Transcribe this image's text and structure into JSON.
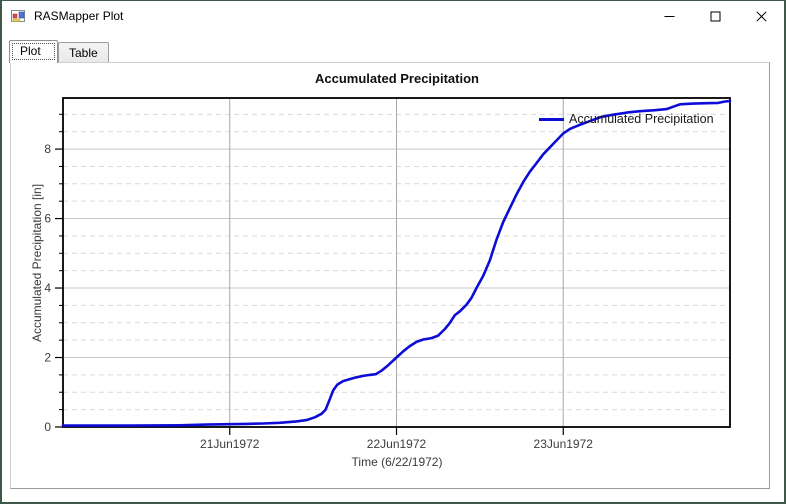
{
  "window": {
    "title": "RASMapper Plot",
    "controls": {
      "minimize": "minimize",
      "maximize": "maximize",
      "close": "close"
    },
    "border_color": "#3d5748"
  },
  "tabs": [
    {
      "label": "Plot",
      "selected": true
    },
    {
      "label": "Table",
      "selected": false
    }
  ],
  "chart_data": {
    "type": "line",
    "title": "Accumulated Precipitation",
    "xlabel": "Time (6/22/1972)",
    "ylabel": "Accumulated Precipitation [in]",
    "x_unit": "days since 20Jun1972 00:00",
    "xlim": [
      0,
      4
    ],
    "ylim": [
      0,
      9.47
    ],
    "xticks": [
      {
        "value": 1,
        "label": "21Jun1972"
      },
      {
        "value": 2,
        "label": "22Jun1972"
      },
      {
        "value": 3,
        "label": "23Jun1972"
      }
    ],
    "yticks": [
      0,
      2,
      4,
      6,
      8
    ],
    "y_minor_step": 0.5,
    "grid": {
      "major_solid": true,
      "minor_dashed": true,
      "vertical_major": true
    },
    "legend_position": "top-right-inside",
    "colors": {
      "line": "#0d0dd6",
      "major_grid": "#c6c6c6",
      "minor_grid": "#d9d9d9",
      "vertical_grid": "#a8a8a8",
      "frame": "#000000",
      "tick_label": "#3c3c3c"
    },
    "series": [
      {
        "name": "Accumulated Precipitation",
        "points": [
          [
            0.0,
            0.04
          ],
          [
            0.4,
            0.04
          ],
          [
            0.7,
            0.05
          ],
          [
            0.86,
            0.07
          ],
          [
            1.0,
            0.08
          ],
          [
            1.1,
            0.09
          ],
          [
            1.2,
            0.1
          ],
          [
            1.3,
            0.12
          ],
          [
            1.4,
            0.16
          ],
          [
            1.46,
            0.2
          ],
          [
            1.51,
            0.28
          ],
          [
            1.55,
            0.38
          ],
          [
            1.575,
            0.5
          ],
          [
            1.6,
            0.8
          ],
          [
            1.62,
            1.05
          ],
          [
            1.645,
            1.22
          ],
          [
            1.68,
            1.32
          ],
          [
            1.72,
            1.38
          ],
          [
            1.76,
            1.43
          ],
          [
            1.8,
            1.47
          ],
          [
            1.84,
            1.5
          ],
          [
            1.875,
            1.52
          ],
          [
            1.91,
            1.62
          ],
          [
            1.95,
            1.78
          ],
          [
            2.0,
            2.0
          ],
          [
            2.04,
            2.18
          ],
          [
            2.08,
            2.33
          ],
          [
            2.12,
            2.45
          ],
          [
            2.16,
            2.52
          ],
          [
            2.21,
            2.56
          ],
          [
            2.25,
            2.63
          ],
          [
            2.29,
            2.82
          ],
          [
            2.32,
            3.0
          ],
          [
            2.35,
            3.22
          ],
          [
            2.38,
            3.33
          ],
          [
            2.42,
            3.52
          ],
          [
            2.45,
            3.72
          ],
          [
            2.48,
            4.0
          ],
          [
            2.52,
            4.35
          ],
          [
            2.56,
            4.8
          ],
          [
            2.6,
            5.4
          ],
          [
            2.64,
            5.9
          ],
          [
            2.68,
            6.3
          ],
          [
            2.72,
            6.7
          ],
          [
            2.76,
            7.05
          ],
          [
            2.8,
            7.35
          ],
          [
            2.84,
            7.6
          ],
          [
            2.88,
            7.85
          ],
          [
            2.92,
            8.05
          ],
          [
            2.96,
            8.25
          ],
          [
            3.0,
            8.45
          ],
          [
            3.04,
            8.58
          ],
          [
            3.09,
            8.68
          ],
          [
            3.14,
            8.77
          ],
          [
            3.19,
            8.86
          ],
          [
            3.23,
            8.93
          ],
          [
            3.3,
            8.99
          ],
          [
            3.38,
            9.05
          ],
          [
            3.46,
            9.09
          ],
          [
            3.55,
            9.12
          ],
          [
            3.62,
            9.15
          ],
          [
            3.66,
            9.22
          ],
          [
            3.7,
            9.29
          ],
          [
            3.78,
            9.31
          ],
          [
            3.86,
            9.32
          ],
          [
            3.93,
            9.33
          ],
          [
            3.97,
            9.37
          ],
          [
            4.0,
            9.38
          ]
        ]
      }
    ]
  }
}
